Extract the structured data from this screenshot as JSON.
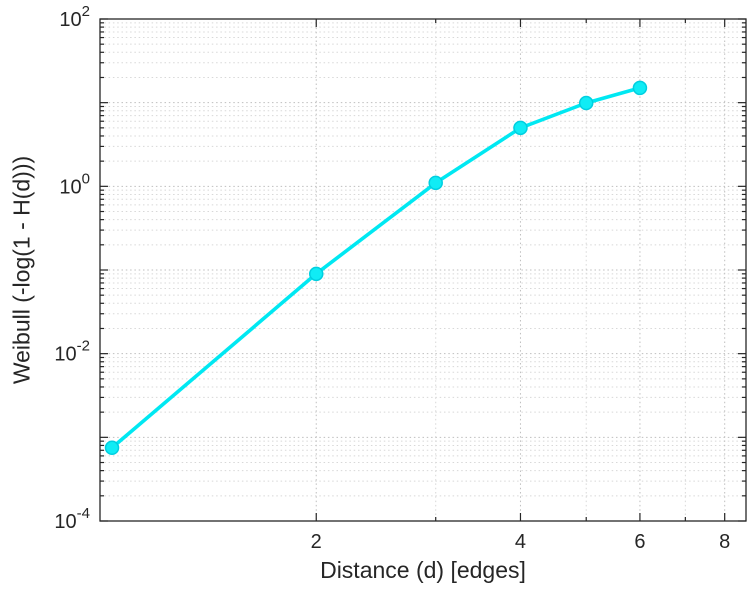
{
  "chart_data": {
    "type": "line",
    "title": "",
    "xlabel": "Distance (d) [edges]",
    "ylabel": "Weibull (-log(1 - H(d)))",
    "xscale": "log",
    "yscale": "log",
    "x": [
      1,
      2,
      3,
      4,
      5,
      6
    ],
    "y": [
      0.00075,
      0.09,
      1.1,
      5.0,
      9.9,
      15.0
    ],
    "xlim": [
      0.96,
      8.6
    ],
    "ylim": [
      0.0001,
      100
    ],
    "x_major_ticks": [
      2,
      4,
      6,
      8
    ],
    "x_minor_ticks": [
      3,
      5,
      7
    ],
    "y_tick_exponents": [
      2,
      0,
      -2,
      -4
    ],
    "y_decade_exponents": [
      2,
      1,
      0,
      -1,
      -2,
      -3,
      -4
    ],
    "grid": "on",
    "minor_grid": "on",
    "legend": "none",
    "line_color": "#00e8f2",
    "marker_fill": "#10ecf5",
    "marker_edge": "#00cfe0",
    "text_color": "#262626",
    "axis_color": "#262626",
    "grid_major_color": "#bfbfbf",
    "grid_minor_color": "#d8d8d8",
    "background": "#ffffff"
  }
}
